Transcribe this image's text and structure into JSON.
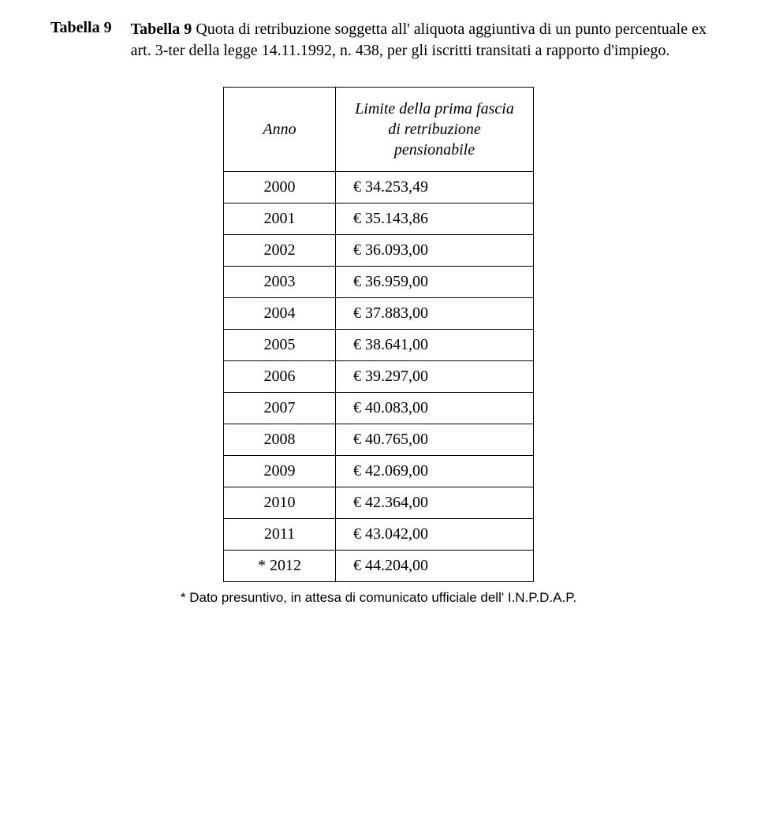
{
  "heading": {
    "label": "Tabella 9",
    "bold_prefix": "Tabella 9",
    "rest": " Quota di retribuzione soggetta all' aliquota aggiuntiva di un punto percentuale ex art. 3-ter della legge 14.11.1992, n. 438, per gli iscritti transitati a rapporto d'impiego."
  },
  "table": {
    "columns": {
      "anno": "Anno",
      "value": "Limite della prima fascia di retribuzione pensionabile"
    },
    "rows": [
      {
        "anno": "2000",
        "value": "€ 34.253,49"
      },
      {
        "anno": "2001",
        "value": "€ 35.143,86"
      },
      {
        "anno": "2002",
        "value": "€ 36.093,00"
      },
      {
        "anno": "2003",
        "value": "€ 36.959,00"
      },
      {
        "anno": "2004",
        "value": "€ 37.883,00"
      },
      {
        "anno": "2005",
        "value": "€ 38.641,00"
      },
      {
        "anno": "2006",
        "value": "€ 39.297,00"
      },
      {
        "anno": "2007",
        "value": "€ 40.083,00"
      },
      {
        "anno": "2008",
        "value": "€ 40.765,00"
      },
      {
        "anno": "2009",
        "value": "€ 42.069,00"
      },
      {
        "anno": "2010",
        "value": "€ 42.364,00"
      },
      {
        "anno": "2011",
        "value": "€ 43.042,00"
      },
      {
        "anno": "* 2012",
        "value": "€ 44.204,00"
      }
    ]
  },
  "footnote": "* Dato presuntivo, in attesa di comunicato ufficiale dell' I.N.P.D.A.P."
}
